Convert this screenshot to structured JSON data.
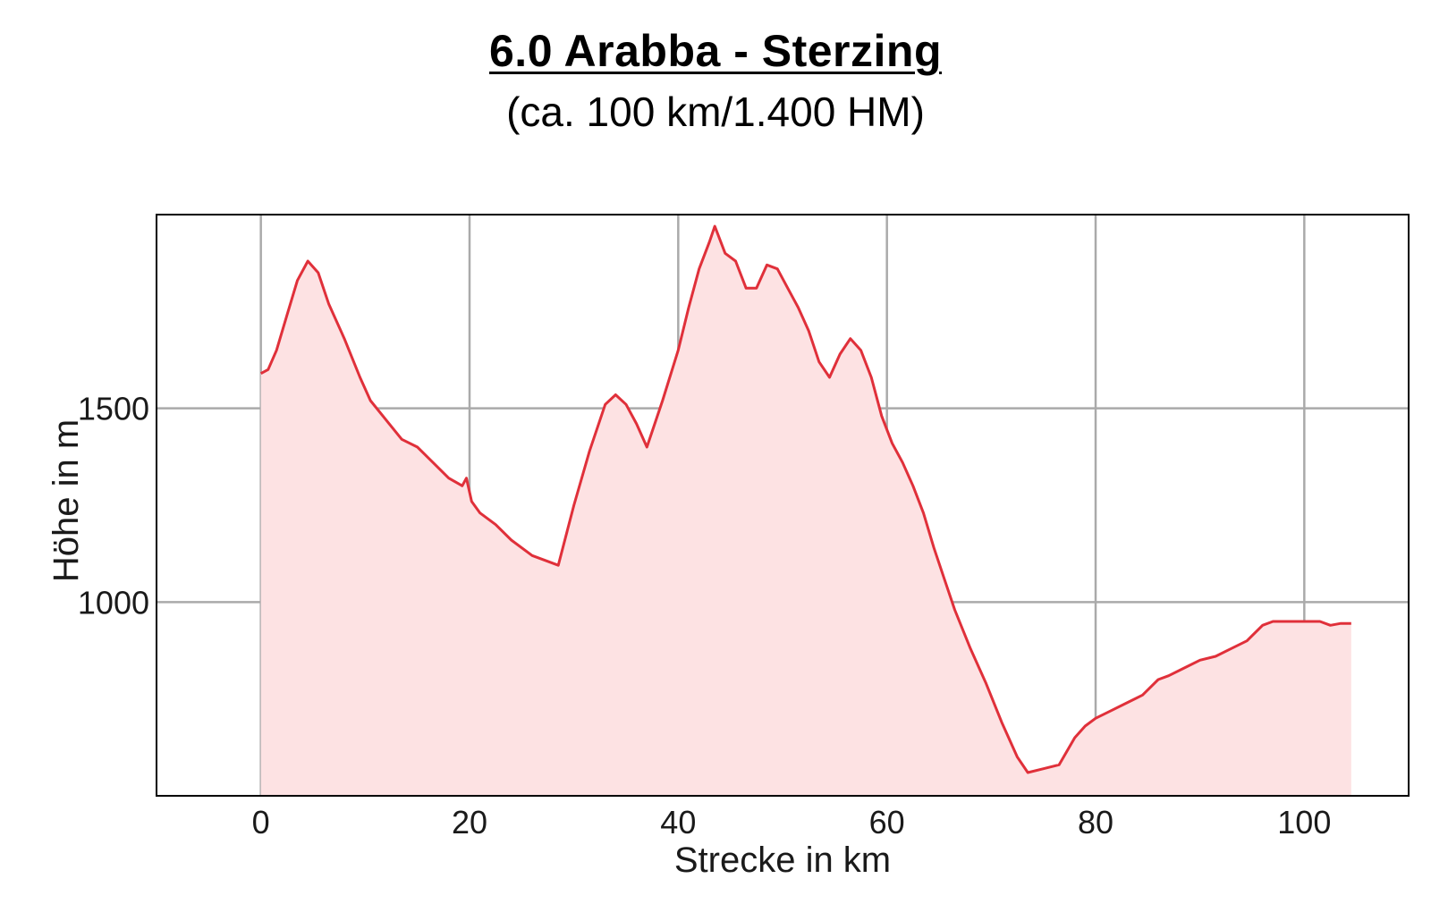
{
  "title": "6.0 Arabba - Sterzing",
  "subtitle": "(ca. 100 km/1.400 HM)",
  "chart_data": {
    "type": "area",
    "title": "6.0 Arabba - Sterzing",
    "subtitle": "(ca. 100 km/1.400 HM)",
    "xlabel": "Strecke in km",
    "ylabel": "Höhe in m",
    "xlim": [
      -10,
      110
    ],
    "ylim": [
      500,
      2000
    ],
    "x_ticks": [
      0,
      20,
      40,
      60,
      80,
      100
    ],
    "y_ticks": [
      1000,
      1500
    ],
    "grid": true,
    "colors": {
      "line": "#e0303a",
      "fill": "#fde2e3",
      "grid": "#aaaaaa",
      "frame": "#000000"
    },
    "x": [
      0,
      0.7,
      1.5,
      2.5,
      3.5,
      4.5,
      5.5,
      6.5,
      8,
      9.5,
      10.5,
      12,
      13.5,
      15,
      16.5,
      18,
      19.3,
      19.7,
      20.2,
      21,
      22.5,
      24,
      26,
      27.5,
      28.5,
      30,
      31.5,
      33,
      34,
      35,
      36,
      37,
      38.5,
      40,
      41,
      42,
      43,
      43.5,
      44.5,
      45.5,
      46.5,
      47.5,
      48.5,
      49.5,
      50.5,
      51.5,
      52.5,
      53.5,
      54.5,
      55.5,
      56.5,
      57.5,
      58.5,
      59.5,
      60.5,
      61.5,
      62.5,
      63.5,
      64.5,
      65.5,
      66.5,
      68,
      69.5,
      71,
      72.5,
      73.5,
      75,
      76.5,
      78,
      79,
      80,
      81.5,
      83,
      84.5,
      86,
      87,
      88.5,
      90,
      91.5,
      93,
      94.5,
      96,
      97,
      98.5,
      100,
      101.5,
      102.5,
      103.5,
      104.5
    ],
    "y": [
      1590,
      1600,
      1650,
      1740,
      1830,
      1880,
      1850,
      1770,
      1680,
      1580,
      1520,
      1470,
      1420,
      1400,
      1360,
      1320,
      1300,
      1320,
      1260,
      1230,
      1200,
      1160,
      1120,
      1105,
      1095,
      1250,
      1390,
      1510,
      1535,
      1510,
      1460,
      1400,
      1520,
      1650,
      1760,
      1860,
      1930,
      1970,
      1900,
      1880,
      1810,
      1810,
      1870,
      1860,
      1810,
      1760,
      1700,
      1620,
      1580,
      1640,
      1680,
      1650,
      1580,
      1480,
      1410,
      1360,
      1300,
      1230,
      1140,
      1060,
      980,
      880,
      790,
      690,
      600,
      560,
      570,
      580,
      650,
      680,
      700,
      720,
      740,
      760,
      800,
      810,
      830,
      850,
      860,
      880,
      900,
      940,
      950,
      950,
      950,
      950,
      940,
      945,
      945
    ]
  }
}
